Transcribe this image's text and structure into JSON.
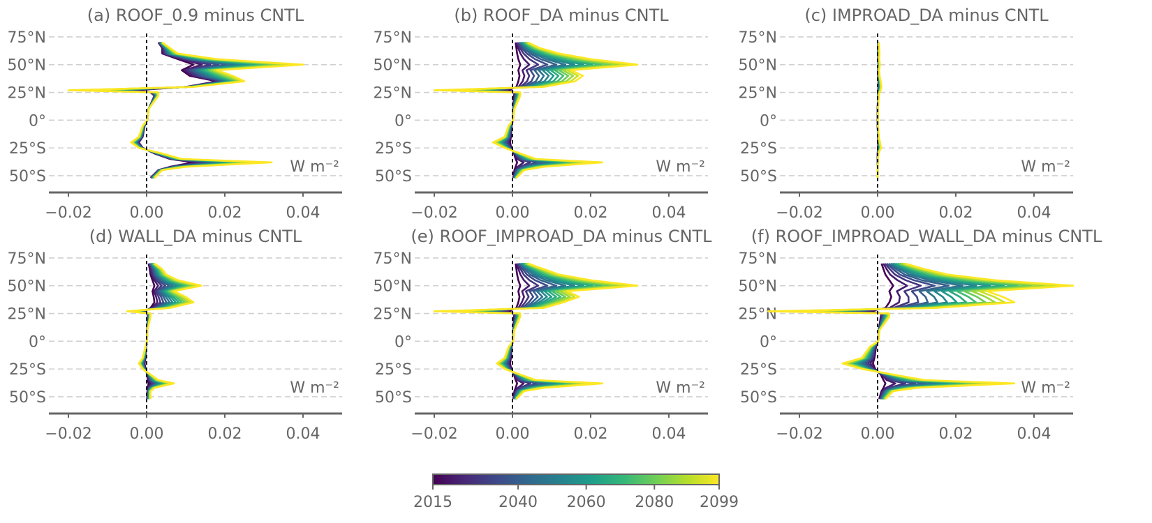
{
  "chart_data": [
    {
      "panel": "a",
      "type": "line",
      "title": "(a) ROOF_0.9 minus CNTL",
      "unit_label": "W m⁻²",
      "xlim": [
        -0.025,
        0.05
      ],
      "xticks": [
        -0.02,
        0.0,
        0.02,
        0.04
      ],
      "xtick_labels": [
        "−0.02",
        "0.00",
        "0.02",
        "0.04"
      ],
      "ylim": [
        -62,
        80
      ],
      "yticks": [
        75,
        50,
        25,
        0,
        -25,
        -50
      ],
      "ytick_labels": [
        "75°N",
        "50°N",
        "25°N",
        "0°",
        "25°S",
        "50°S"
      ],
      "zero_line": true,
      "profile_first": {
        "year": 2015,
        "lat": [
          70,
          65,
          60,
          55,
          50,
          45,
          40,
          35,
          30,
          27,
          25,
          22,
          10,
          0,
          -5,
          -15,
          -20,
          -25,
          -30,
          -35,
          -38,
          -42,
          -45,
          -52
        ],
        "value": [
          0.003,
          0.004,
          0.004,
          0.008,
          0.012,
          0.009,
          0.011,
          0.018,
          0.01,
          -0.003,
          0.001,
          0.002,
          0.0005,
          0.0002,
          -0.0005,
          -0.001,
          -0.002,
          -0.001,
          0.002,
          0.006,
          0.012,
          0.006,
          0.003,
          0.001
        ]
      },
      "profile_last": {
        "year": 2099,
        "lat": [
          70,
          65,
          60,
          55,
          50,
          45,
          40,
          35,
          30,
          27,
          25,
          22,
          10,
          0,
          -5,
          -15,
          -20,
          -25,
          -30,
          -35,
          -38,
          -42,
          -45,
          -52
        ],
        "value": [
          0.004,
          0.006,
          0.008,
          0.018,
          0.04,
          0.018,
          0.022,
          0.025,
          0.012,
          -0.02,
          0.003,
          0.003,
          0.0005,
          0.0002,
          -0.001,
          -0.002,
          -0.004,
          -0.002,
          0.004,
          0.009,
          0.032,
          0.01,
          0.004,
          0.002
        ]
      }
    },
    {
      "panel": "b",
      "type": "line",
      "title": "(b) ROOF_DA minus CNTL",
      "unit_label": "W m⁻²",
      "xlim": [
        -0.025,
        0.05
      ],
      "xticks": [
        -0.02,
        0.0,
        0.02,
        0.04
      ],
      "xtick_labels": [
        "−0.02",
        "0.00",
        "0.02",
        "0.04"
      ],
      "ylim": [
        -62,
        80
      ],
      "yticks": [
        75,
        50,
        25,
        0,
        -25,
        -50
      ],
      "ytick_labels": [
        "75°N",
        "50°N",
        "25°N",
        "0°",
        "25°S",
        "50°S"
      ],
      "zero_line": true,
      "profile_first": {
        "year": 2015,
        "lat": [
          70,
          65,
          60,
          55,
          50,
          45,
          40,
          35,
          30,
          27,
          25,
          22,
          10,
          0,
          -5,
          -15,
          -20,
          -25,
          -30,
          -35,
          -38,
          -42,
          -45,
          -52
        ],
        "value": [
          0.0008,
          0.001,
          0.0012,
          0.0015,
          0.002,
          0.0015,
          0.0018,
          0.0015,
          0.001,
          -0.001,
          0.0005,
          0.0004,
          0.0002,
          0.0001,
          -0.0002,
          -0.0004,
          -0.0006,
          -0.0003,
          0.0004,
          0.0008,
          0.0012,
          0.0008,
          0.0005,
          0.0002
        ]
      },
      "profile_last": {
        "year": 2099,
        "lat": [
          70,
          65,
          60,
          55,
          50,
          45,
          40,
          35,
          30,
          27,
          25,
          22,
          10,
          0,
          -5,
          -15,
          -20,
          -25,
          -30,
          -35,
          -38,
          -42,
          -45,
          -52
        ],
        "value": [
          0.004,
          0.007,
          0.012,
          0.02,
          0.032,
          0.015,
          0.018,
          0.016,
          0.008,
          -0.02,
          0.002,
          0.002,
          0.0005,
          0.0002,
          -0.001,
          -0.002,
          -0.005,
          -0.002,
          0.002,
          0.006,
          0.023,
          0.008,
          0.003,
          0.001
        ]
      }
    },
    {
      "panel": "c",
      "type": "line",
      "title": "(c) IMPROAD_DA minus CNTL",
      "unit_label": "W m⁻²",
      "xlim": [
        -0.025,
        0.05
      ],
      "xticks": [
        -0.02,
        0.0,
        0.02,
        0.04
      ],
      "xtick_labels": [
        "−0.02",
        "0.00",
        "0.02",
        "0.04"
      ],
      "ylim": [
        -62,
        80
      ],
      "yticks": [
        75,
        50,
        25,
        0,
        -25,
        -50
      ],
      "ytick_labels": [
        "75°N",
        "50°N",
        "25°N",
        "0°",
        "25°S",
        "50°S"
      ],
      "zero_line": true,
      "profile_first": {
        "year": 2015,
        "lat": [
          70,
          65,
          60,
          55,
          50,
          45,
          40,
          35,
          30,
          27,
          25,
          22,
          10,
          0,
          -5,
          -15,
          -20,
          -25,
          -30,
          -35,
          -38,
          -42,
          -45,
          -52
        ],
        "value": [
          0.0001,
          0.0001,
          0.0001,
          0.0001,
          0.0002,
          0.0001,
          0.0001,
          0.0002,
          0.0002,
          0.0001,
          0.0001,
          0.0001,
          0.0,
          0.0,
          0.0,
          0.0001,
          0.0001,
          0.0001,
          0.0,
          0.0,
          0.0,
          0.0,
          0.0,
          0.0
        ]
      },
      "profile_last": {
        "year": 2099,
        "lat": [
          70,
          65,
          60,
          55,
          50,
          45,
          40,
          35,
          30,
          27,
          25,
          22,
          10,
          0,
          -5,
          -15,
          -20,
          -25,
          -30,
          -35,
          -38,
          -42,
          -45,
          -52
        ],
        "value": [
          0.0003,
          0.0004,
          0.0005,
          0.0004,
          0.0006,
          0.0004,
          0.0005,
          0.0008,
          0.001,
          0.0008,
          0.0005,
          0.0003,
          0.0001,
          0.0001,
          0.0001,
          0.0003,
          0.0006,
          0.0009,
          0.0002,
          0.0001,
          0.0001,
          0.0,
          0.0,
          0.0
        ]
      }
    },
    {
      "panel": "d",
      "type": "line",
      "title": "(d) WALL_DA minus CNTL",
      "unit_label": "W m⁻²",
      "xlim": [
        -0.025,
        0.05
      ],
      "xticks": [
        -0.02,
        0.0,
        0.02,
        0.04
      ],
      "xtick_labels": [
        "−0.02",
        "0.00",
        "0.02",
        "0.04"
      ],
      "ylim": [
        -62,
        80
      ],
      "yticks": [
        75,
        50,
        25,
        0,
        -25,
        -50
      ],
      "ytick_labels": [
        "75°N",
        "50°N",
        "25°N",
        "0°",
        "25°S",
        "50°S"
      ],
      "zero_line": true,
      "profile_first": {
        "year": 2015,
        "lat": [
          70,
          65,
          60,
          55,
          50,
          45,
          40,
          35,
          30,
          27,
          25,
          22,
          10,
          0,
          -5,
          -15,
          -20,
          -25,
          -30,
          -35,
          -38,
          -42,
          -45,
          -52
        ],
        "value": [
          0.0005,
          0.0008,
          0.001,
          0.0015,
          0.002,
          0.0015,
          0.0018,
          0.002,
          0.001,
          -0.0005,
          0.0003,
          0.0003,
          0.0001,
          0.0001,
          -0.0001,
          -0.0003,
          -0.0005,
          -0.0003,
          0.0002,
          0.0003,
          0.0005,
          0.0003,
          0.0002,
          0.0001
        ]
      },
      "profile_last": {
        "year": 2099,
        "lat": [
          70,
          65,
          60,
          55,
          50,
          45,
          40,
          35,
          30,
          27,
          25,
          22,
          10,
          0,
          -5,
          -15,
          -20,
          -25,
          -30,
          -35,
          -38,
          -42,
          -45,
          -52
        ],
        "value": [
          0.002,
          0.004,
          0.005,
          0.008,
          0.014,
          0.007,
          0.01,
          0.012,
          0.006,
          -0.005,
          0.001,
          0.001,
          0.0002,
          0.0001,
          -0.0003,
          -0.001,
          -0.002,
          -0.001,
          0.001,
          0.003,
          0.007,
          0.002,
          0.001,
          0.001
        ]
      }
    },
    {
      "panel": "e",
      "type": "line",
      "title": "(e) ROOF_IMPROAD_DA minus CNTL",
      "unit_label": "W m⁻²",
      "xlim": [
        -0.025,
        0.05
      ],
      "xticks": [
        -0.02,
        0.0,
        0.02,
        0.04
      ],
      "xtick_labels": [
        "−0.02",
        "0.00",
        "0.02",
        "0.04"
      ],
      "ylim": [
        -62,
        80
      ],
      "yticks": [
        75,
        50,
        25,
        0,
        -25,
        -50
      ],
      "ytick_labels": [
        "75°N",
        "50°N",
        "25°N",
        "0°",
        "25°S",
        "50°S"
      ],
      "zero_line": true,
      "profile_first": {
        "year": 2015,
        "lat": [
          70,
          65,
          60,
          55,
          50,
          45,
          40,
          35,
          30,
          27,
          25,
          22,
          10,
          0,
          -5,
          -15,
          -20,
          -25,
          -30,
          -35,
          -38,
          -42,
          -45,
          -52
        ],
        "value": [
          0.0008,
          0.001,
          0.0012,
          0.0015,
          0.002,
          0.0015,
          0.0018,
          0.0015,
          0.001,
          -0.001,
          0.0005,
          0.0004,
          0.0002,
          0.0001,
          -0.0002,
          -0.0004,
          -0.0006,
          -0.0003,
          0.0004,
          0.0008,
          0.0012,
          0.0008,
          0.0005,
          0.0002
        ]
      },
      "profile_last": {
        "year": 2099,
        "lat": [
          70,
          65,
          60,
          55,
          50,
          45,
          40,
          35,
          30,
          27,
          25,
          22,
          10,
          0,
          -5,
          -15,
          -20,
          -25,
          -30,
          -35,
          -38,
          -42,
          -45,
          -52
        ],
        "value": [
          0.004,
          0.008,
          0.012,
          0.02,
          0.032,
          0.014,
          0.017,
          0.013,
          0.008,
          -0.02,
          0.002,
          0.002,
          0.0005,
          0.0002,
          -0.001,
          -0.002,
          -0.004,
          -0.002,
          0.002,
          0.006,
          0.023,
          0.008,
          0.003,
          0.001
        ]
      }
    },
    {
      "panel": "f",
      "type": "line",
      "title": "(f) ROOF_IMPROAD_WALL_DA minus CNTL",
      "unit_label": "W m⁻²",
      "xlim": [
        -0.025,
        0.05
      ],
      "xticks": [
        -0.02,
        0.0,
        0.02,
        0.04
      ],
      "xtick_labels": [
        "−0.02",
        "0.00",
        "0.02",
        "0.04"
      ],
      "ylim": [
        -62,
        80
      ],
      "yticks": [
        75,
        50,
        25,
        0,
        -25,
        -50
      ],
      "ytick_labels": [
        "75°N",
        "50°N",
        "25°N",
        "0°",
        "25°S",
        "50°S"
      ],
      "zero_line": true,
      "profile_first": {
        "year": 2015,
        "lat": [
          70,
          65,
          60,
          55,
          50,
          45,
          40,
          35,
          30,
          27,
          25,
          22,
          10,
          0,
          -5,
          -15,
          -20,
          -25,
          -30,
          -35,
          -38,
          -42,
          -45,
          -52
        ],
        "value": [
          0.001,
          0.0015,
          0.002,
          0.003,
          0.004,
          0.003,
          0.0035,
          0.003,
          0.002,
          -0.002,
          0.001,
          0.0008,
          0.0003,
          0.0001,
          -0.0004,
          -0.0008,
          -0.0012,
          -0.0006,
          0.0008,
          0.0015,
          0.002,
          0.0015,
          0.001,
          0.0004
        ]
      },
      "profile_last": {
        "year": 2099,
        "lat": [
          70,
          65,
          60,
          55,
          50,
          45,
          40,
          35,
          30,
          27,
          25,
          22,
          10,
          0,
          -5,
          -15,
          -20,
          -25,
          -30,
          -35,
          -38,
          -42,
          -45,
          -52
        ],
        "value": [
          0.007,
          0.012,
          0.018,
          0.03,
          0.05,
          0.028,
          0.032,
          0.035,
          0.015,
          -0.028,
          0.003,
          0.003,
          0.0005,
          0.0002,
          -0.002,
          -0.004,
          -0.009,
          -0.004,
          0.004,
          0.012,
          0.035,
          0.01,
          0.004,
          0.002
        ]
      }
    }
  ],
  "colorbar": {
    "ticks": [
      2015,
      2040,
      2060,
      2080,
      2099
    ],
    "tick_labels": [
      "2015",
      "2040",
      "2060",
      "2080",
      "2099"
    ],
    "colormap": "viridis",
    "colors": [
      "#440154",
      "#482878",
      "#3e4989",
      "#31688e",
      "#26828e",
      "#1f9e89",
      "#35b779",
      "#6ece58",
      "#b5de2b",
      "#fde725"
    ]
  }
}
